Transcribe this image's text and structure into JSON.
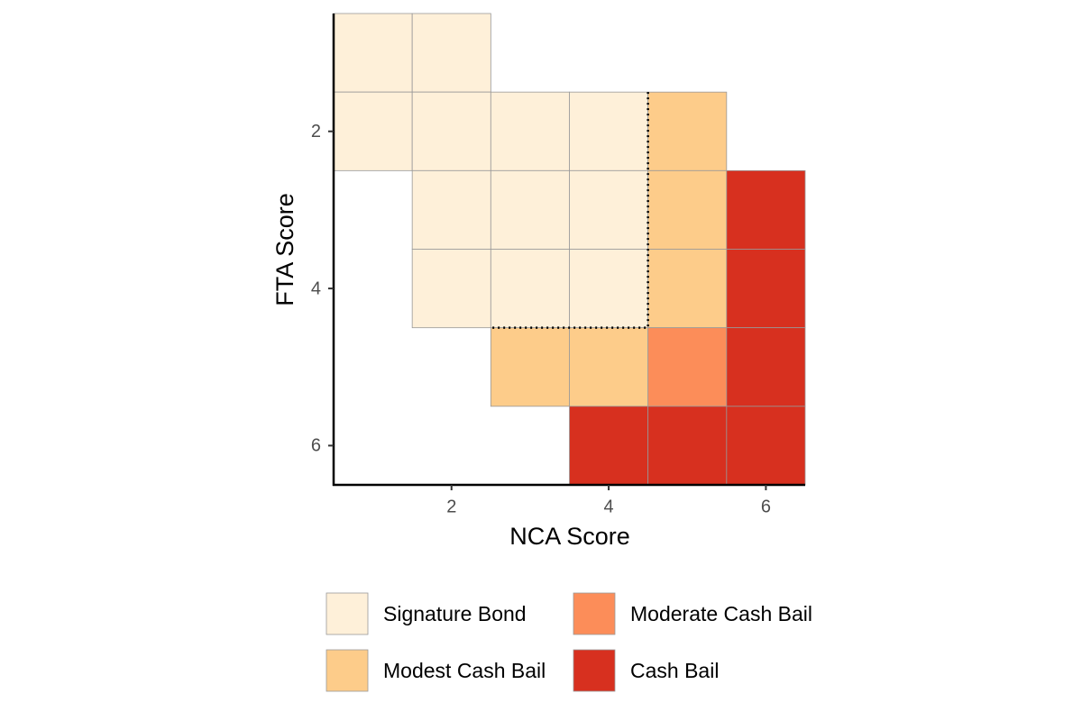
{
  "chart_data": {
    "type": "heatmap",
    "x_label": "NCA Score",
    "y_label": "FTA Score",
    "xlim": [
      0.5,
      6.5
    ],
    "ylim": [
      6.5,
      0.5
    ],
    "xticks": [
      2,
      4,
      6
    ],
    "yticks": [
      2,
      4,
      6
    ],
    "series": [
      {
        "name": "Signature Bond",
        "color": "#fef0d9",
        "x": [
          1,
          2,
          1,
          2,
          3,
          4,
          2,
          3,
          4,
          2,
          3,
          4
        ],
        "y": [
          1,
          1,
          2,
          2,
          2,
          2,
          3,
          3,
          3,
          4,
          4,
          4
        ]
      },
      {
        "name": "Modest Cash Bail",
        "color": "#fdcc8a",
        "x": [
          5,
          5,
          5,
          3,
          4
        ],
        "y": [
          2,
          3,
          4,
          5,
          5
        ]
      },
      {
        "name": "Moderate Cash Bail",
        "color": "#fc8d59",
        "x": [
          5
        ],
        "y": [
          5
        ]
      },
      {
        "name": "Cash Bail",
        "color": "#d7301f",
        "x": [
          6,
          6,
          6,
          4,
          5,
          6
        ],
        "y": [
          3,
          4,
          5,
          6,
          6,
          6
        ]
      }
    ],
    "boundary": {
      "x": [
        4.5,
        4.5,
        2.5
      ],
      "y": [
        1.5,
        4.5,
        4.5
      ]
    }
  }
}
